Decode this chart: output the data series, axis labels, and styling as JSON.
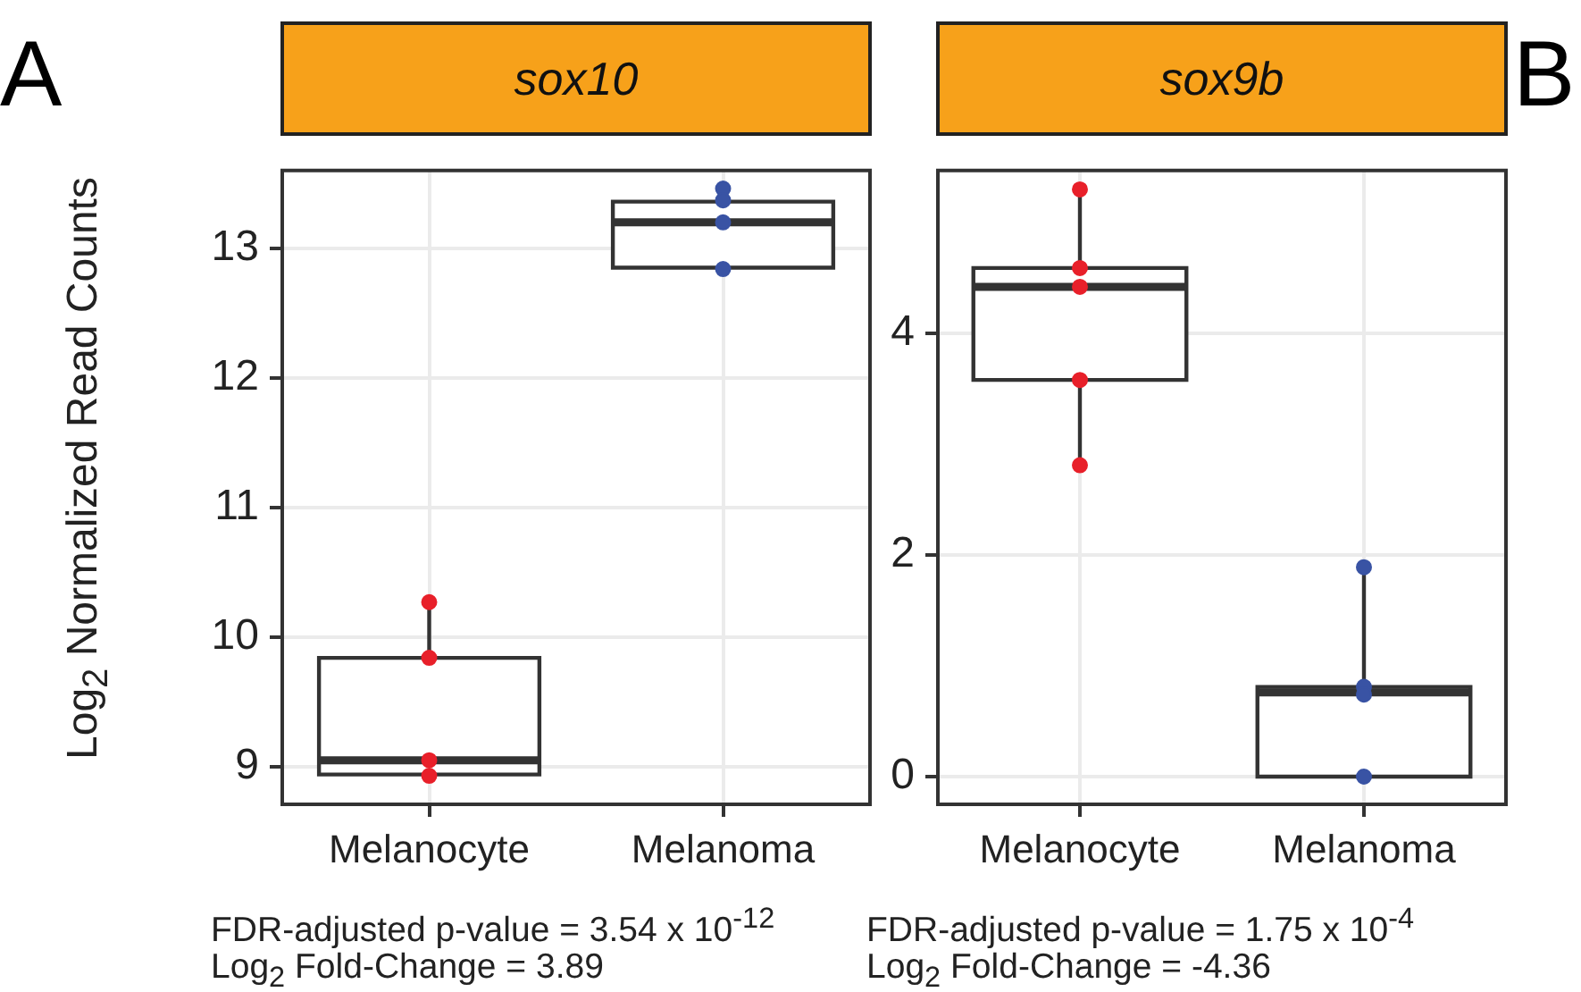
{
  "chart_data": [
    {
      "type": "box",
      "title": "sox10",
      "ylabel": "Log$_{2}$ Normalized Read Counts",
      "categories": [
        "Melanocyte",
        "Melanoma"
      ],
      "ylim": [
        8.71,
        13.6
      ],
      "yticks": [
        9,
        10,
        11,
        12,
        13
      ],
      "grid": true,
      "boxes": [
        {
          "low": 8.93,
          "q1": 8.94,
          "median": 9.05,
          "q3": 9.84,
          "high": 10.27
        },
        {
          "low": 12.84,
          "q1": 12.85,
          "median": 13.2,
          "q3": 13.36,
          "high": 13.46
        }
      ],
      "series": [
        {
          "type": "scatter",
          "marker": "circle",
          "x": [
            "Melanocyte",
            "Melanocyte",
            "Melanocyte",
            "Melanocyte",
            "Melanocyte",
            "Melanoma",
            "Melanoma",
            "Melanoma",
            "Melanoma"
          ],
          "values": [
            10.27,
            9.84,
            9.05,
            null,
            8.93,
            13.46,
            13.37,
            13.2,
            12.84
          ],
          "colors": [
            "#e8202a",
            "#e8202a",
            "#e8202a",
            "#e8202a",
            "#e8202a",
            "#3953a4",
            "#3953a4",
            "#3953a4",
            "#3953a4"
          ]
        }
      ],
      "annotations": [
        "A",
        "FDR-adjusted p-value = 3.54 x 10$^{-12}$",
        "Log$_{2}$ Fold-Change = 3.89"
      ]
    },
    {
      "type": "box",
      "title": "sox9b",
      "categories": [
        "Melanocyte",
        "Melanoma"
      ],
      "ylim": [
        -0.25,
        5.47
      ],
      "yticks": [
        0,
        2,
        4
      ],
      "grid": true,
      "boxes": [
        {
          "low": 2.81,
          "q1": 3.58,
          "median": 4.42,
          "q3": 4.59,
          "high": 5.3
        },
        {
          "low": 0,
          "q1": 0,
          "median": 0.76,
          "q3": 0.81,
          "high": 1.89
        }
      ],
      "series": [
        {
          "type": "scatter",
          "marker": "circle",
          "x": [
            "Melanocyte",
            "Melanocyte",
            "Melanocyte",
            "Melanocyte",
            "Melanocyte",
            "Melanoma",
            "Melanoma",
            "Melanoma",
            "Melanoma"
          ],
          "values": [
            5.3,
            4.59,
            4.42,
            3.58,
            2.81,
            1.89,
            0.81,
            0.74,
            0
          ],
          "colors": [
            "#e8202a",
            "#e8202a",
            "#e8202a",
            "#e8202a",
            "#e8202a",
            "#3953a4",
            "#3953a4",
            "#3953a4",
            "#3953a4"
          ]
        }
      ],
      "annotations": [
        "B",
        "FDR-adjusted p-value = 1.75 x 10$^{-4}$",
        "Log$_{2}$ Fold-Change = -4.36"
      ]
    }
  ]
}
